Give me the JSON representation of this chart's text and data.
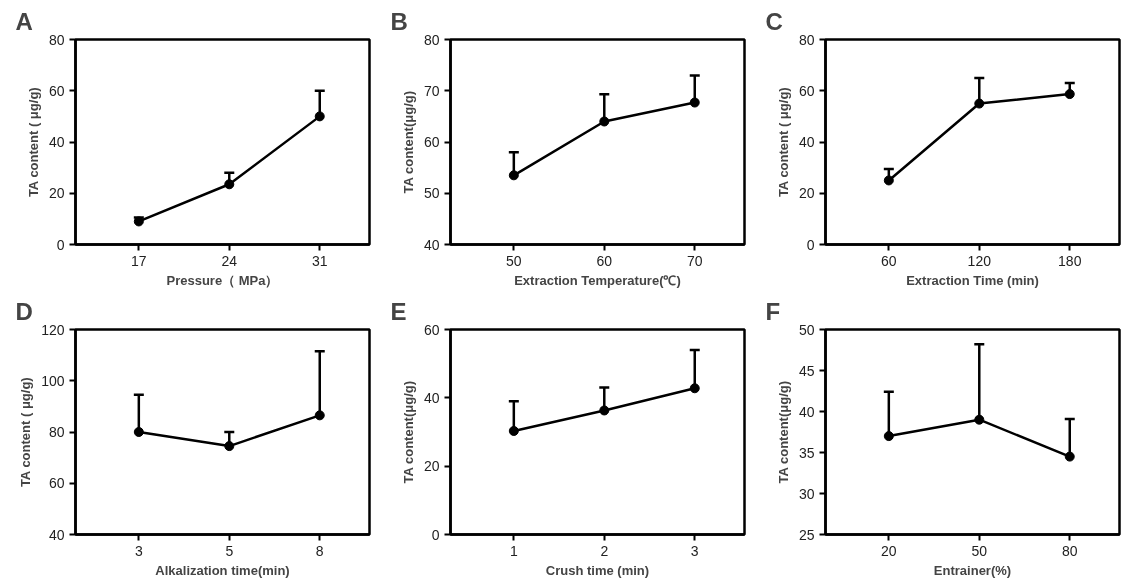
{
  "chart_data": [
    {
      "type": "line",
      "title": "A",
      "xlabel": "Pressure（ MPa）",
      "ylabel": "TA content ( μg/g)",
      "categories": [
        "17",
        "24",
        "31"
      ],
      "values": [
        9,
        23.5,
        50
      ],
      "errors": [
        [
          9,
          10.5
        ],
        [
          23.5,
          28
        ],
        [
          50,
          60
        ]
      ],
      "ylim": [
        0,
        80
      ],
      "yticks": [
        0,
        20,
        40,
        60,
        80
      ],
      "color": "#000000",
      "marker": "circle",
      "line_style": "solid",
      "grid": false
    },
    {
      "type": "line",
      "title": "B",
      "xlabel": "Extraction Temperature(℃)",
      "ylabel": "TA content(μg/g)",
      "categories": [
        "50",
        "60",
        "70"
      ],
      "values": [
        53.5,
        64,
        67.7
      ],
      "errors": [
        [
          53.5,
          58
        ],
        [
          64,
          69.3
        ],
        [
          67.7,
          73
        ]
      ],
      "ylim": [
        40,
        80
      ],
      "yticks": [
        40,
        50,
        60,
        70,
        80
      ],
      "color": "#000000",
      "marker": "circle",
      "line_style": "solid",
      "grid": false
    },
    {
      "type": "line",
      "title": "C",
      "xlabel": "Extraction Time (min)",
      "ylabel": "TA content ( μg/g)",
      "categories": [
        "60",
        "120",
        "180"
      ],
      "values": [
        25,
        55,
        58.7
      ],
      "errors": [
        [
          25,
          29.5
        ],
        [
          55,
          65
        ],
        [
          58.7,
          63
        ]
      ],
      "ylim": [
        0,
        80
      ],
      "yticks": [
        0,
        20,
        40,
        60,
        80
      ],
      "color": "#000000",
      "marker": "circle",
      "line_style": "solid",
      "grid": false
    },
    {
      "type": "line",
      "title": "D",
      "xlabel": "Alkalization time(min)",
      "ylabel": "TA content ( μg/g)",
      "categories": [
        "3",
        "5",
        "8"
      ],
      "values": [
        80,
        74.5,
        86.5
      ],
      "errors": [
        [
          80,
          94.5
        ],
        [
          74.5,
          80
        ],
        [
          86.5,
          111.5
        ]
      ],
      "ylim": [
        40,
        120
      ],
      "yticks": [
        40,
        60,
        80,
        100,
        120
      ],
      "color": "#000000",
      "marker": "circle",
      "line_style": "solid",
      "grid": false
    },
    {
      "type": "line",
      "title": "E",
      "xlabel": "Crush time (min)",
      "ylabel": "TA content(μg/g)",
      "categories": [
        "1",
        "2",
        "3"
      ],
      "values": [
        30.3,
        36.3,
        42.8
      ],
      "errors": [
        [
          30.3,
          39
        ],
        [
          36.3,
          43
        ],
        [
          42.8,
          54
        ]
      ],
      "ylim": [
        0,
        60
      ],
      "yticks": [
        0,
        20,
        40,
        60
      ],
      "color": "#000000",
      "marker": "circle",
      "line_style": "solid",
      "grid": false
    },
    {
      "type": "line",
      "title": "F",
      "xlabel": "Entrainer(%)",
      "ylabel": "TA content(μg/g)",
      "categories": [
        "20",
        "50",
        "80"
      ],
      "values": [
        37,
        39,
        34.5
      ],
      "errors": [
        [
          37,
          42.4
        ],
        [
          39,
          48.2
        ],
        [
          34.5,
          39.1
        ]
      ],
      "ylim": [
        25,
        50
      ],
      "yticks": [
        25,
        30,
        35,
        40,
        45,
        50
      ],
      "color": "#000000",
      "marker": "circle",
      "line_style": "solid",
      "grid": false
    }
  ]
}
